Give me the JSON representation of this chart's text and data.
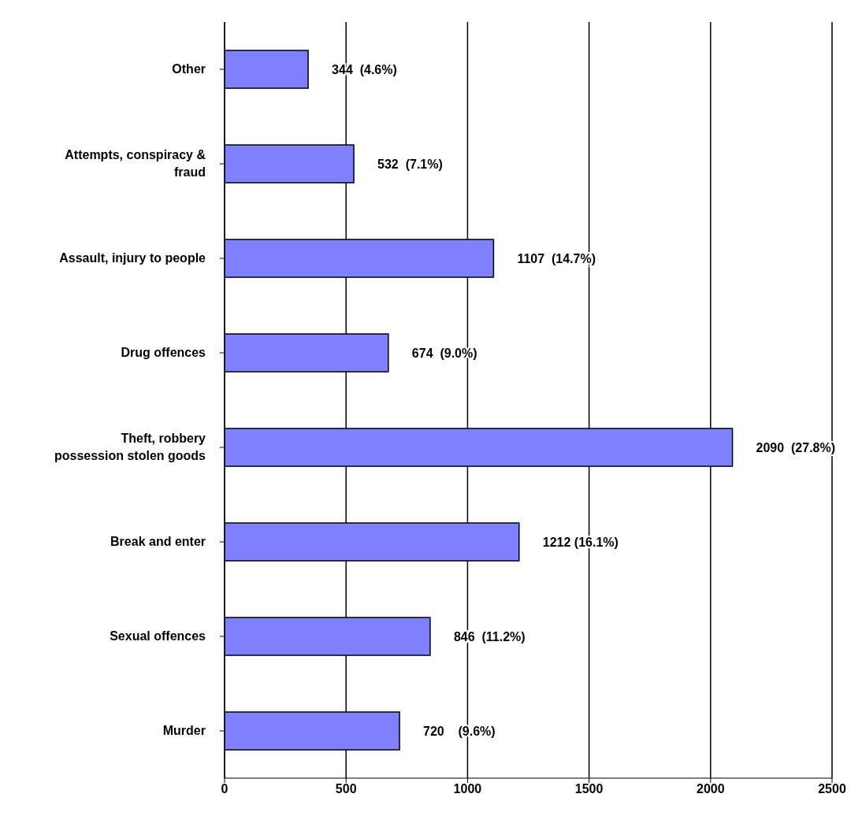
{
  "chart_data": {
    "type": "bar",
    "orientation": "horizontal",
    "categories": [
      "Other",
      "Attempts, conspiracy &\nfraud",
      "Assault, injury to people",
      "Drug offences",
      "Theft, robbery\npossession stolen goods",
      "Break and enter",
      "Sexual offences",
      "Murder"
    ],
    "values": [
      344,
      532,
      1107,
      674,
      2090,
      1212,
      846,
      720
    ],
    "value_labels": [
      "344  (4.6%)",
      "532  (7.1%)",
      "1107  (14.7%)",
      "674  (9.0%)",
      "2090  (27.8%)",
      "1212 (16.1%)",
      "846  (11.2%)",
      "720    (9.6%)"
    ],
    "color": "#8080ff",
    "xlim": [
      0,
      2500
    ],
    "xticks": [
      0,
      500,
      1000,
      1500,
      2000,
      2500
    ],
    "grid": "x"
  }
}
